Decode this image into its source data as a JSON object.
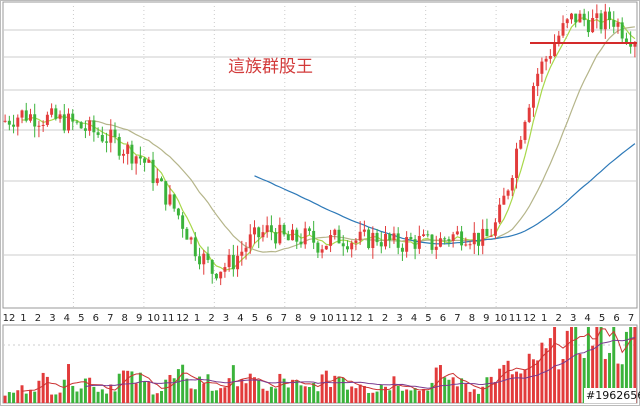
{
  "chart_data": {
    "type": "candlestick",
    "watermark": "這族群股王",
    "image_id": "#1962656",
    "x_tick_labels": [
      "12",
      "1",
      "2",
      "3",
      "4",
      "5",
      "6",
      "7",
      "8",
      "9",
      "10",
      "11",
      "12",
      "1",
      "2",
      "3",
      "4",
      "5",
      "6",
      "7",
      "8",
      "9",
      "10",
      "11",
      "12",
      "1",
      "2",
      "3",
      "4",
      "5",
      "6",
      "7",
      "8",
      "9",
      "10",
      "11",
      "12",
      "1",
      "2",
      "3",
      "4",
      "5",
      "6",
      "7"
    ],
    "colors": {
      "up": "#e23b3b",
      "down": "#3bb33b",
      "ma_fast": "#a8d84a",
      "ma_mid": "#b5b58a",
      "ma_slow": "#2d79b8",
      "resistance": "#d42a2a",
      "grid": "#cccccc",
      "frame": "#999999"
    },
    "close_path": [
      [
        0,
        150
      ],
      [
        0.03,
        152
      ],
      [
        0.06,
        151
      ],
      [
        0.1,
        150
      ],
      [
        0.13,
        148
      ],
      [
        0.16,
        146
      ],
      [
        0.19,
        143
      ],
      [
        0.22,
        140
      ],
      [
        0.25,
        132
      ],
      [
        0.28,
        124
      ],
      [
        0.3,
        117
      ],
      [
        0.33,
        110
      ],
      [
        0.36,
        112
      ],
      [
        0.39,
        118
      ],
      [
        0.42,
        121
      ],
      [
        0.45,
        118
      ],
      [
        0.48,
        119
      ],
      [
        0.5,
        117
      ],
      [
        0.53,
        119
      ],
      [
        0.56,
        118
      ],
      [
        0.59,
        119
      ],
      [
        0.62,
        117
      ],
      [
        0.65,
        118
      ],
      [
        0.68,
        117
      ],
      [
        0.7,
        119
      ],
      [
        0.73,
        120
      ],
      [
        0.76,
        118
      ],
      [
        0.78,
        123
      ],
      [
        0.8,
        135
      ],
      [
        0.82,
        150
      ],
      [
        0.84,
        162
      ],
      [
        0.86,
        168
      ],
      [
        0.88,
        174
      ],
      [
        0.9,
        178
      ],
      [
        0.92,
        177
      ],
      [
        0.94,
        176
      ],
      [
        0.96,
        178
      ],
      [
        0.98,
        174
      ],
      [
        1,
        172
      ]
    ],
    "y_range": [
      100,
      182
    ],
    "resistance_level": 171,
    "volume": [
      2,
      3,
      4,
      5,
      3,
      6,
      4,
      5,
      3,
      4,
      6,
      5,
      4,
      3,
      5,
      6,
      4,
      5,
      3,
      4,
      6,
      5,
      4,
      3,
      5,
      4,
      3,
      4,
      5,
      6,
      4,
      5,
      3,
      4,
      5,
      4,
      3,
      4,
      6,
      5,
      4,
      3,
      5,
      6,
      7,
      6,
      8,
      10,
      12,
      14,
      13,
      15,
      16,
      14,
      12,
      15
    ]
  }
}
